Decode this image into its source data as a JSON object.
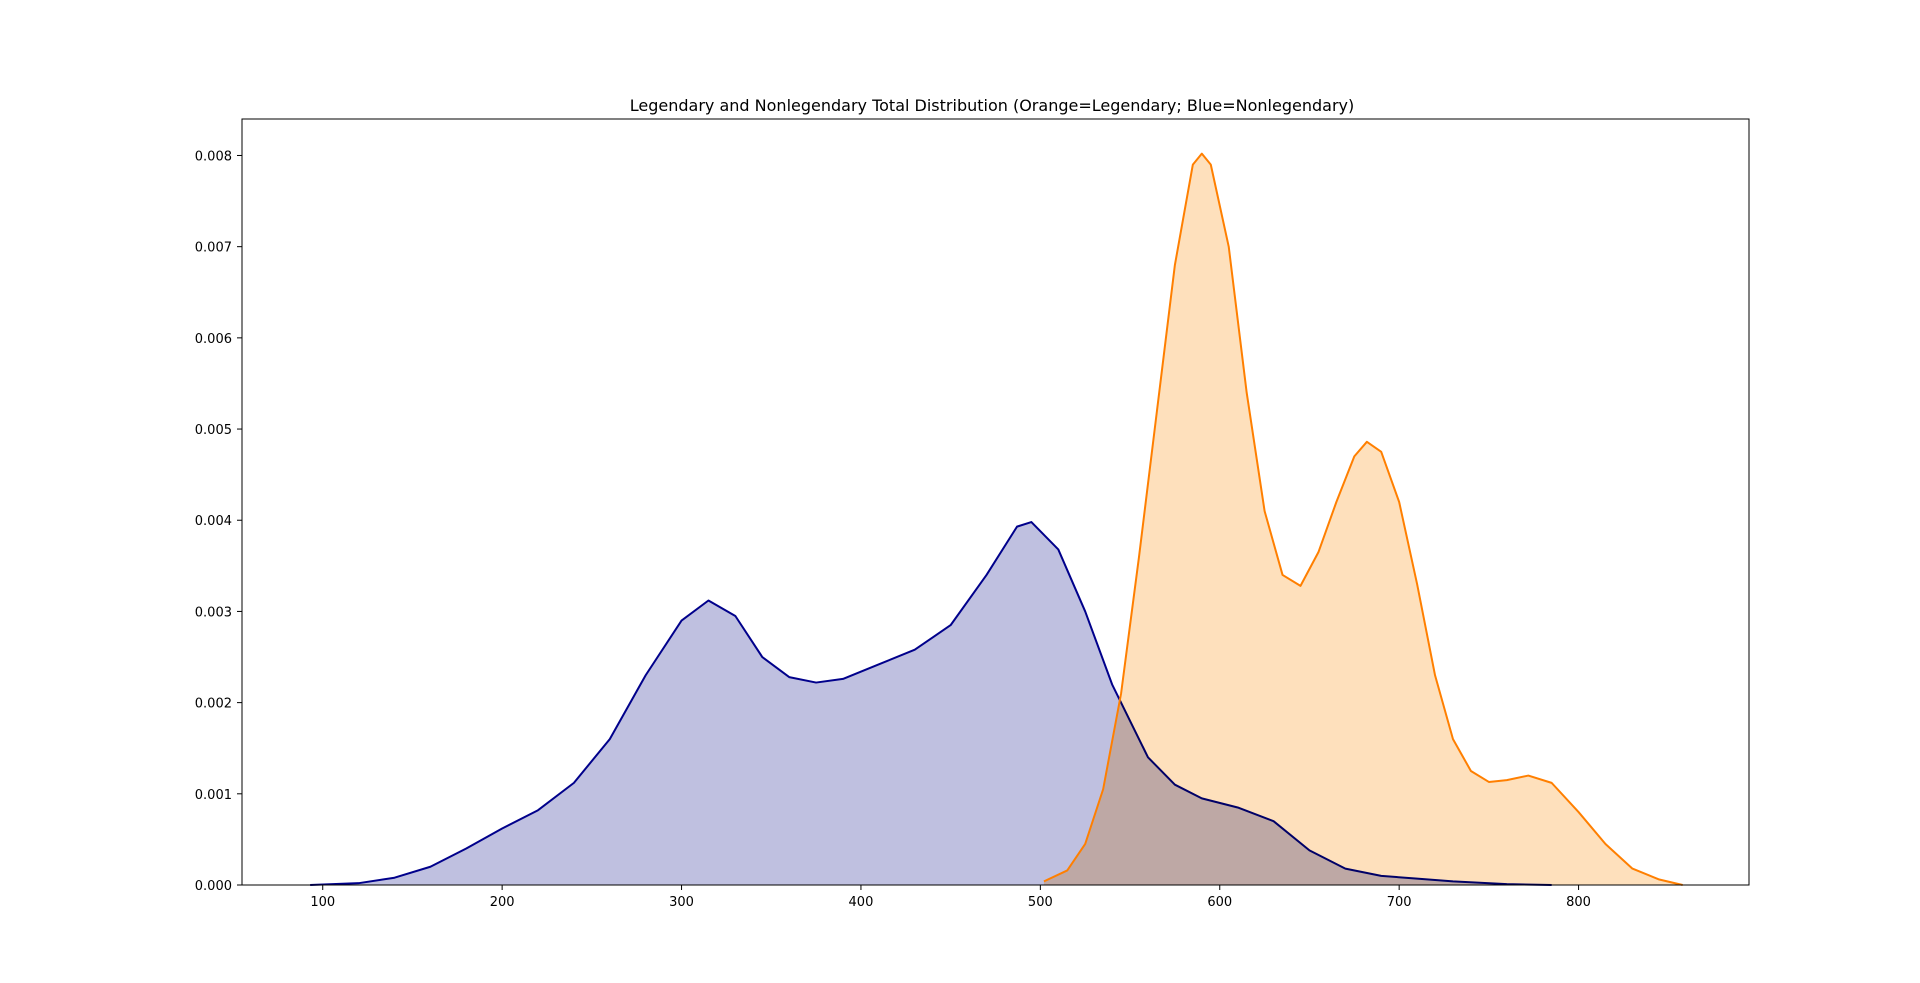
{
  "chart_data": {
    "type": "area",
    "title": "Legendary and Nonlegendary Total Distribution (Orange=Legendary;   Blue=Nonlegendary)",
    "xlabel": "",
    "ylabel": "",
    "xlim": [
      55,
      895
    ],
    "ylim": [
      0,
      0.0084
    ],
    "grid": false,
    "x_ticks": [
      100,
      200,
      300,
      400,
      500,
      600,
      700,
      800
    ],
    "y_ticks": [
      0.0,
      0.001,
      0.002,
      0.003,
      0.004,
      0.005,
      0.006,
      0.007,
      0.008
    ],
    "x_tick_labels": [
      "100",
      "200",
      "300",
      "400",
      "500",
      "600",
      "700",
      "800"
    ],
    "y_tick_labels": [
      "0.000",
      "0.001",
      "0.002",
      "0.003",
      "0.004",
      "0.005",
      "0.006",
      "0.007",
      "0.008"
    ],
    "series": [
      {
        "line_color": "#00008b",
        "fill_color": "#bfc0e0",
        "points": [
          [
            93,
            0.0
          ],
          [
            120,
            2e-05
          ],
          [
            140,
            8e-05
          ],
          [
            160,
            0.0002
          ],
          [
            180,
            0.0004
          ],
          [
            200,
            0.00062
          ],
          [
            220,
            0.00082
          ],
          [
            240,
            0.00112
          ],
          [
            260,
            0.0016
          ],
          [
            280,
            0.0023
          ],
          [
            300,
            0.0029
          ],
          [
            315,
            0.00312
          ],
          [
            330,
            0.00295
          ],
          [
            345,
            0.0025
          ],
          [
            360,
            0.00228
          ],
          [
            375,
            0.00222
          ],
          [
            390,
            0.00226
          ],
          [
            410,
            0.00242
          ],
          [
            430,
            0.00258
          ],
          [
            450,
            0.00285
          ],
          [
            470,
            0.0034
          ],
          [
            487,
            0.00393
          ],
          [
            495,
            0.00398
          ],
          [
            510,
            0.00368
          ],
          [
            525,
            0.003
          ],
          [
            540,
            0.0022
          ],
          [
            560,
            0.0014
          ],
          [
            575,
            0.0011
          ],
          [
            590,
            0.00095
          ],
          [
            610,
            0.00085
          ],
          [
            630,
            0.0007
          ],
          [
            650,
            0.00038
          ],
          [
            670,
            0.00018
          ],
          [
            690,
            0.0001
          ],
          [
            710,
            7e-05
          ],
          [
            730,
            4e-05
          ],
          [
            760,
            1e-05
          ],
          [
            785,
            0.0
          ]
        ]
      },
      {
        "line_color": "#ff7f00",
        "fill_color": "#fee0bc",
        "points": [
          [
            502,
            4e-05
          ],
          [
            515,
            0.00016
          ],
          [
            525,
            0.00045
          ],
          [
            535,
            0.00105
          ],
          [
            545,
            0.0021
          ],
          [
            555,
            0.0036
          ],
          [
            565,
            0.0052
          ],
          [
            575,
            0.0068
          ],
          [
            585,
            0.0079
          ],
          [
            590,
            0.00802
          ],
          [
            595,
            0.0079
          ],
          [
            605,
            0.007
          ],
          [
            615,
            0.0054
          ],
          [
            625,
            0.0041
          ],
          [
            635,
            0.0034
          ],
          [
            645,
            0.00328
          ],
          [
            655,
            0.00365
          ],
          [
            665,
            0.0042
          ],
          [
            675,
            0.0047
          ],
          [
            682,
            0.00486
          ],
          [
            690,
            0.00475
          ],
          [
            700,
            0.0042
          ],
          [
            710,
            0.0033
          ],
          [
            720,
            0.0023
          ],
          [
            730,
            0.0016
          ],
          [
            740,
            0.00125
          ],
          [
            750,
            0.00113
          ],
          [
            760,
            0.00115
          ],
          [
            772,
            0.0012
          ],
          [
            785,
            0.00112
          ],
          [
            800,
            0.0008
          ],
          [
            815,
            0.00045
          ],
          [
            830,
            0.00018
          ],
          [
            845,
            6e-05
          ],
          [
            858,
            0.0
          ]
        ]
      }
    ]
  }
}
